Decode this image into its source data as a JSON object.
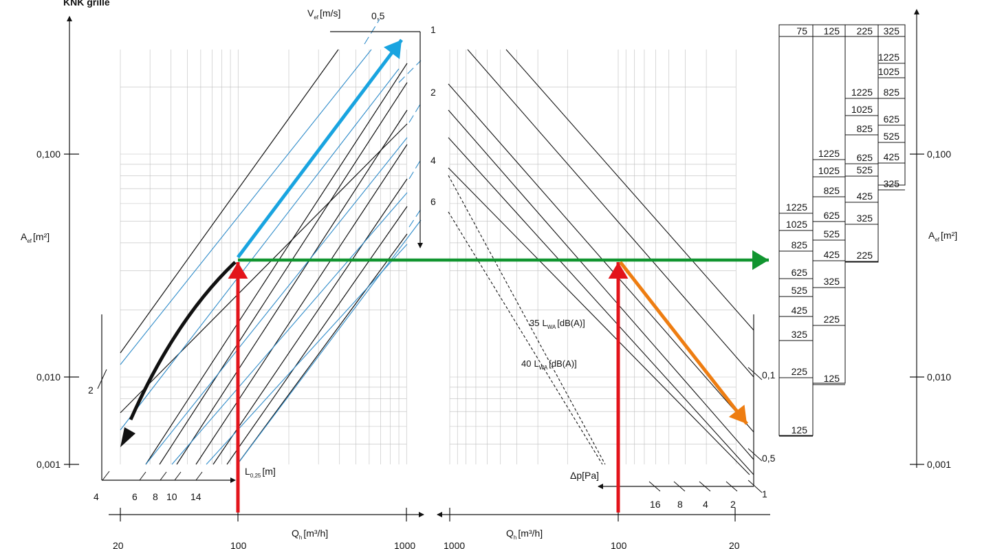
{
  "title": "KNK grille",
  "colors": {
    "blue": "#2E8BC9",
    "cyan": "#19A4E0",
    "red": "#E3141B",
    "green": "#119530",
    "orange": "#EE7D11",
    "black": "#111111",
    "grid": "#BDBDBD"
  },
  "axes": {
    "aef_label_main": "A",
    "aef_label_sub": "ef",
    "aef_label_unit": "[m²]",
    "aef_ticks": [
      "0,001",
      "0,010",
      "0,100"
    ],
    "vef_label_main": "V",
    "vef_label_sub": "ef",
    "vef_label_unit": "[m/s]",
    "vef_values": [
      "0,5",
      "1",
      "2",
      "4",
      "6"
    ],
    "qh_label_main": "Q",
    "qh_label_sub": "h",
    "qh_label_unit": "[m³/h]",
    "qh_ticks_left": [
      "20",
      "100",
      "1000"
    ],
    "qh_ticks_right": [
      "1000",
      "100",
      "20"
    ],
    "throw_label_main": "L",
    "throw_label_sub": "0,25",
    "throw_label_unit": "[m]",
    "throw_ticks": [
      "2",
      "4",
      "6",
      "8",
      "10",
      "14"
    ],
    "dp_label": "Δp[Pa]",
    "dp_values": [
      "0,1",
      "0,5",
      "1",
      "2",
      "4",
      "8",
      "16"
    ],
    "lwa35_num": "35",
    "lwa40_num": "40",
    "lwa_main": "L",
    "lwa_sub": "WA",
    "lwa_unit": "[dB(A)]"
  },
  "size_table": {
    "headers": [
      "75",
      "125",
      "225",
      "325"
    ],
    "col1": [
      "1225",
      "1025",
      "825",
      "625",
      "525",
      "425",
      "325",
      "225",
      "125"
    ],
    "col2": [
      "1225",
      "1025",
      "825",
      "625",
      "525",
      "425",
      "325",
      "225",
      "125"
    ],
    "col3": [
      "1225",
      "1025",
      "825",
      "625",
      "525",
      "425",
      "325",
      "225"
    ],
    "col4": [
      "1225",
      "1025",
      "825",
      "625",
      "525",
      "425",
      "325"
    ]
  },
  "chart_data": {
    "type": "line",
    "title": "KNK grille",
    "yscale": "log",
    "xscale": "log",
    "ylabel": "Aef [m²]",
    "ylim": [
      0.001,
      0.3
    ],
    "xlabel_left": "Qh [m³/h]",
    "xlim_left": [
      20,
      1000
    ],
    "xlabel_right": "Qh [m³/h]",
    "xlim_right": [
      1000,
      20
    ],
    "series_vef_m_s": [
      0.5,
      1,
      2,
      4,
      6
    ],
    "series_throw_m": [
      2,
      4,
      6,
      8,
      10,
      14
    ],
    "series_dp_pa": [
      0.1,
      0.5,
      1,
      2,
      4,
      8,
      16
    ],
    "series_lwa_dba": [
      35,
      40
    ],
    "example": {
      "Qh_m3h": 100,
      "Aef_m2": 0.022,
      "Vef_m_s": 1
    },
    "grid": true
  }
}
